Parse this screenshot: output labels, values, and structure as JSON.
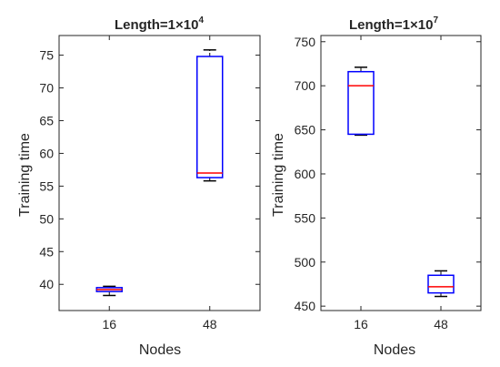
{
  "chart_data": [
    {
      "type": "boxplot",
      "title": "Length=1×10",
      "title_exponent": "4",
      "xlabel": "Nodes",
      "ylabel": "Training time",
      "categories": [
        "16",
        "48"
      ],
      "ylim": [
        36,
        78
      ],
      "yticks": [
        40,
        45,
        50,
        55,
        60,
        65,
        70,
        75
      ],
      "boxes": [
        {
          "category": "16",
          "whisker_low": 38.3,
          "q1": 38.9,
          "median": 39.2,
          "q3": 39.5,
          "whisker_high": 39.7
        },
        {
          "category": "48",
          "whisker_low": 55.8,
          "q1": 56.3,
          "median": 57.0,
          "q3": 74.8,
          "whisker_high": 75.8
        }
      ],
      "grid": false
    },
    {
      "type": "boxplot",
      "title": "Length=1×10",
      "title_exponent": "7",
      "xlabel": "Nodes",
      "ylabel": "Training time",
      "categories": [
        "16",
        "48"
      ],
      "ylim": [
        445,
        757
      ],
      "yticks": [
        450,
        500,
        550,
        600,
        650,
        700,
        750
      ],
      "boxes": [
        {
          "category": "16",
          "whisker_low": 644,
          "q1": 645,
          "median": 700,
          "q3": 716,
          "whisker_high": 721
        },
        {
          "category": "48",
          "whisker_low": 461,
          "q1": 465,
          "median": 472,
          "q3": 485,
          "whisker_high": 490
        }
      ],
      "grid": false
    }
  ],
  "colors": {
    "box": "#0000ff",
    "median": "#ff0000",
    "whisker": "#000000",
    "axis": "#262626"
  }
}
